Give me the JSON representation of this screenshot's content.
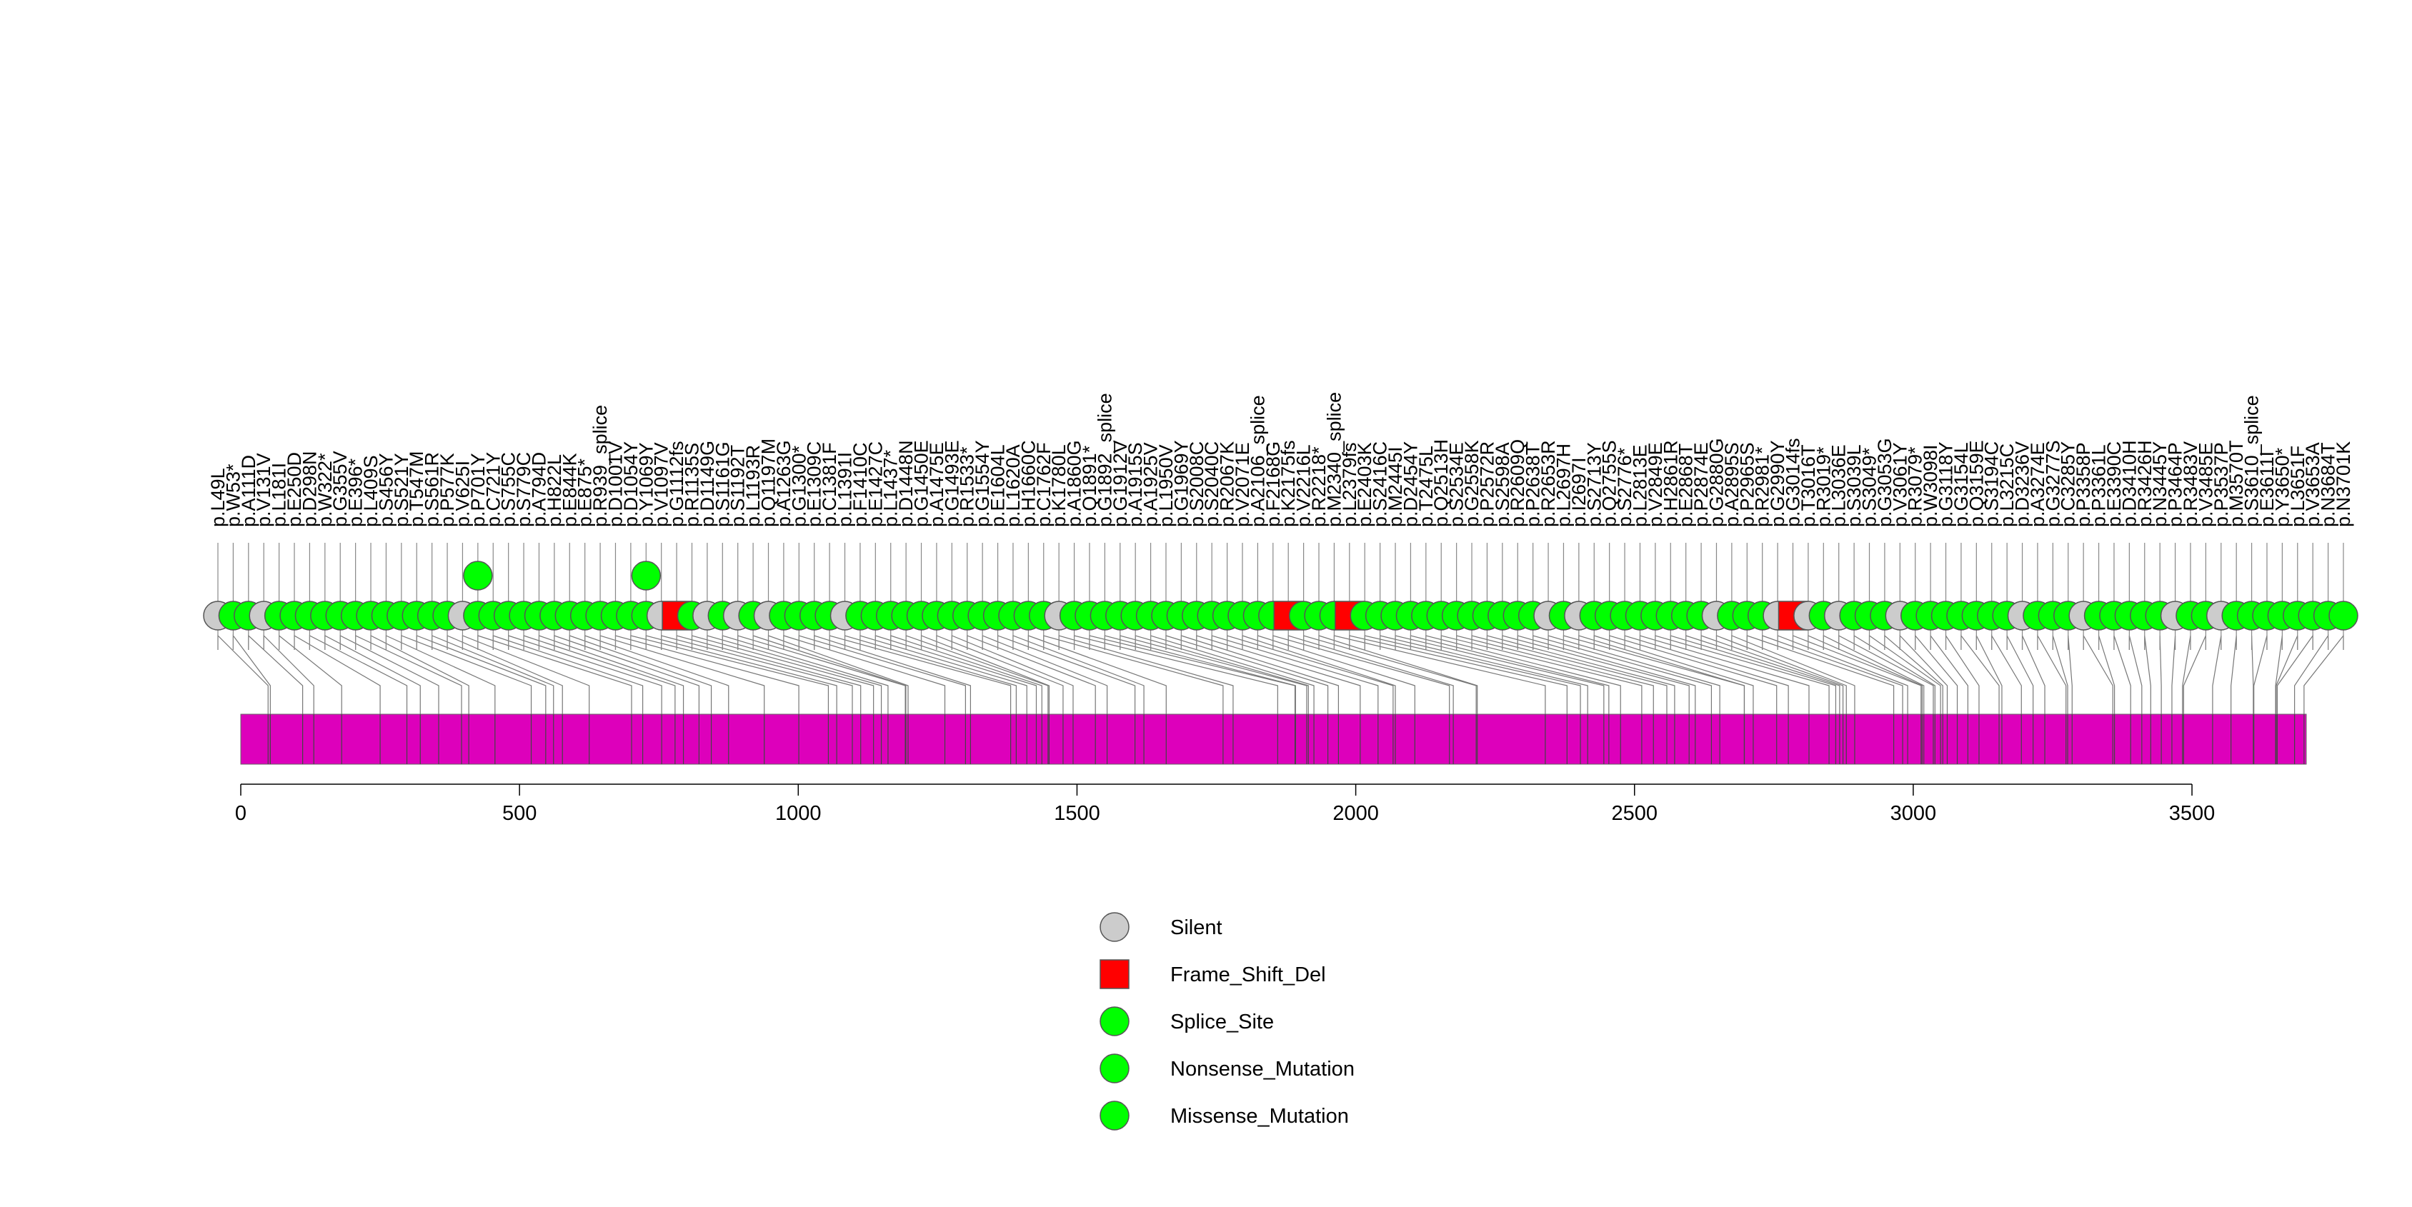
{
  "chart_data": {
    "type": "lollipop",
    "protein_length": 3705,
    "xlim": [
      0,
      3705
    ],
    "x_ticks": [
      0,
      500,
      1000,
      1500,
      2000,
      2500,
      3000,
      3500
    ],
    "x_tick_labels": [
      "0",
      "500",
      "1000",
      "1500",
      "2000",
      "2500",
      "3000",
      "3500"
    ],
    "colors": {
      "Silent": "#cccccc",
      "Frame_Shift_Del": "#ff0000",
      "Splice_Site": "#00ff00",
      "Nonsense_Mutation": "#00ff00",
      "Missense_Mutation": "#00ff00",
      "domain": "#dd00bb"
    },
    "legend": [
      {
        "name": "Silent",
        "shape": "circle",
        "color": "#cccccc"
      },
      {
        "name": "Frame_Shift_Del",
        "shape": "square",
        "color": "#ff0000"
      },
      {
        "name": "Splice_Site",
        "shape": "circle",
        "color": "#00ff00"
      },
      {
        "name": "Nonsense_Mutation",
        "shape": "circle",
        "color": "#00ff00"
      },
      {
        "name": "Missense_Mutation",
        "shape": "circle",
        "color": "#00ff00"
      }
    ],
    "mutations": [
      {
        "label": "p.L49L",
        "pos": 49,
        "type": "Silent",
        "count": 1
      },
      {
        "label": "p.W53*",
        "pos": 53,
        "type": "Nonsense_Mutation",
        "count": 1
      },
      {
        "label": "p.A111D",
        "pos": 111,
        "type": "Missense_Mutation",
        "count": 1
      },
      {
        "label": "p.V131V",
        "pos": 131,
        "type": "Silent",
        "count": 1
      },
      {
        "label": "p.L181I",
        "pos": 181,
        "type": "Missense_Mutation",
        "count": 1
      },
      {
        "label": "p.E250D",
        "pos": 250,
        "type": "Missense_Mutation",
        "count": 1
      },
      {
        "label": "p.D298N",
        "pos": 298,
        "type": "Missense_Mutation",
        "count": 1
      },
      {
        "label": "p.W322*",
        "pos": 322,
        "type": "Nonsense_Mutation",
        "count": 1
      },
      {
        "label": "p.G355V",
        "pos": 355,
        "type": "Missense_Mutation",
        "count": 1
      },
      {
        "label": "p.E396*",
        "pos": 396,
        "type": "Nonsense_Mutation",
        "count": 1
      },
      {
        "label": "p.L409S",
        "pos": 409,
        "type": "Missense_Mutation",
        "count": 1
      },
      {
        "label": "p.S456Y",
        "pos": 456,
        "type": "Missense_Mutation",
        "count": 1
      },
      {
        "label": "p.S521Y",
        "pos": 521,
        "type": "Missense_Mutation",
        "count": 1
      },
      {
        "label": "p.T547M",
        "pos": 547,
        "type": "Missense_Mutation",
        "count": 1
      },
      {
        "label": "p.S561R",
        "pos": 561,
        "type": "Missense_Mutation",
        "count": 1
      },
      {
        "label": "p.P577K",
        "pos": 577,
        "type": "Missense_Mutation",
        "count": 1
      },
      {
        "label": "p.V625I",
        "pos": 625,
        "type": "Silent",
        "count": 1
      },
      {
        "label": "p.P701Y",
        "pos": 701,
        "type": "Missense_Mutation",
        "count": 2
      },
      {
        "label": "p.C721Y",
        "pos": 721,
        "type": "Missense_Mutation",
        "count": 1
      },
      {
        "label": "p.S755C",
        "pos": 755,
        "type": "Missense_Mutation",
        "count": 1
      },
      {
        "label": "p.S779C",
        "pos": 779,
        "type": "Missense_Mutation",
        "count": 1
      },
      {
        "label": "p.A794D",
        "pos": 794,
        "type": "Missense_Mutation",
        "count": 1
      },
      {
        "label": "p.H822L",
        "pos": 822,
        "type": "Missense_Mutation",
        "count": 1
      },
      {
        "label": "p.E844K",
        "pos": 844,
        "type": "Missense_Mutation",
        "count": 1
      },
      {
        "label": "p.E875*",
        "pos": 875,
        "type": "Nonsense_Mutation",
        "count": 1
      },
      {
        "label": "p.R939_splice",
        "pos": 939,
        "type": "Splice_Site",
        "count": 1
      },
      {
        "label": "p.D1001V",
        "pos": 1001,
        "type": "Missense_Mutation",
        "count": 1
      },
      {
        "label": "p.D1054Y",
        "pos": 1054,
        "type": "Missense_Mutation",
        "count": 1
      },
      {
        "label": "p.Y1069Y",
        "pos": 1069,
        "type": "Missense_Mutation",
        "count": 2
      },
      {
        "label": "p.V1097V",
        "pos": 1097,
        "type": "Silent",
        "count": 1
      },
      {
        "label": "p.G1112fs",
        "pos": 1112,
        "type": "Frame_Shift_Del",
        "count": 1
      },
      {
        "label": "p.R1135S",
        "pos": 1135,
        "type": "Missense_Mutation",
        "count": 1
      },
      {
        "label": "p.D1149G",
        "pos": 1149,
        "type": "Silent",
        "count": 1
      },
      {
        "label": "p.S1161G",
        "pos": 1161,
        "type": "Missense_Mutation",
        "count": 1
      },
      {
        "label": "p.S1192T",
        "pos": 1192,
        "type": "Silent",
        "count": 1
      },
      {
        "label": "p.L1193R",
        "pos": 1193,
        "type": "Missense_Mutation",
        "count": 1
      },
      {
        "label": "p.Q1197M",
        "pos": 1197,
        "type": "Silent",
        "count": 1
      },
      {
        "label": "p.A1263G",
        "pos": 1263,
        "type": "Missense_Mutation",
        "count": 1
      },
      {
        "label": "p.G1300*",
        "pos": 1300,
        "type": "Nonsense_Mutation",
        "count": 1
      },
      {
        "label": "p.E1309C",
        "pos": 1309,
        "type": "Missense_Mutation",
        "count": 1
      },
      {
        "label": "p.C1381F",
        "pos": 1381,
        "type": "Missense_Mutation",
        "count": 1
      },
      {
        "label": "p.L1391I",
        "pos": 1391,
        "type": "Silent",
        "count": 1
      },
      {
        "label": "p.F1410C",
        "pos": 1410,
        "type": "Missense_Mutation",
        "count": 1
      },
      {
        "label": "p.E1427C",
        "pos": 1427,
        "type": "Missense_Mutation",
        "count": 1
      },
      {
        "label": "p.L1437*",
        "pos": 1437,
        "type": "Nonsense_Mutation",
        "count": 1
      },
      {
        "label": "p.D1448N",
        "pos": 1448,
        "type": "Missense_Mutation",
        "count": 1
      },
      {
        "label": "p.G1450E",
        "pos": 1450,
        "type": "Missense_Mutation",
        "count": 1
      },
      {
        "label": "p.A1475E",
        "pos": 1475,
        "type": "Missense_Mutation",
        "count": 1
      },
      {
        "label": "p.G1493E",
        "pos": 1493,
        "type": "Missense_Mutation",
        "count": 1
      },
      {
        "label": "p.R1533*",
        "pos": 1533,
        "type": "Nonsense_Mutation",
        "count": 1
      },
      {
        "label": "p.G1554Y",
        "pos": 1554,
        "type": "Missense_Mutation",
        "count": 1
      },
      {
        "label": "p.E1604L",
        "pos": 1604,
        "type": "Missense_Mutation",
        "count": 1
      },
      {
        "label": "p.L1620A",
        "pos": 1620,
        "type": "Missense_Mutation",
        "count": 1
      },
      {
        "label": "p.H1660C",
        "pos": 1660,
        "type": "Missense_Mutation",
        "count": 1
      },
      {
        "label": "p.C1762F",
        "pos": 1762,
        "type": "Missense_Mutation",
        "count": 1
      },
      {
        "label": "p.K1780L",
        "pos": 1780,
        "type": "Silent",
        "count": 1
      },
      {
        "label": "p.A1860G",
        "pos": 1860,
        "type": "Missense_Mutation",
        "count": 1
      },
      {
        "label": "p.Q1891*",
        "pos": 1891,
        "type": "Nonsense_Mutation",
        "count": 1
      },
      {
        "label": "p.G1892_splice",
        "pos": 1892,
        "type": "Splice_Site",
        "count": 1
      },
      {
        "label": "p.G1912V",
        "pos": 1912,
        "type": "Missense_Mutation",
        "count": 1
      },
      {
        "label": "p.A1915S",
        "pos": 1915,
        "type": "Missense_Mutation",
        "count": 1
      },
      {
        "label": "p.A1925V",
        "pos": 1925,
        "type": "Missense_Mutation",
        "count": 1
      },
      {
        "label": "p.L1950V",
        "pos": 1950,
        "type": "Missense_Mutation",
        "count": 1
      },
      {
        "label": "p.G1969Y",
        "pos": 1969,
        "type": "Missense_Mutation",
        "count": 1
      },
      {
        "label": "p.S2008C",
        "pos": 2008,
        "type": "Missense_Mutation",
        "count": 1
      },
      {
        "label": "p.S2040C",
        "pos": 2040,
        "type": "Missense_Mutation",
        "count": 1
      },
      {
        "label": "p.R2067K",
        "pos": 2067,
        "type": "Missense_Mutation",
        "count": 1
      },
      {
        "label": "p.V2071E",
        "pos": 2071,
        "type": "Missense_Mutation",
        "count": 1
      },
      {
        "label": "p.A2106_splice",
        "pos": 2106,
        "type": "Splice_Site",
        "count": 1
      },
      {
        "label": "p.F2168G",
        "pos": 2168,
        "type": "Missense_Mutation",
        "count": 1
      },
      {
        "label": "p.K2175fs",
        "pos": 2175,
        "type": "Frame_Shift_Del",
        "count": 1
      },
      {
        "label": "p.V2216L",
        "pos": 2216,
        "type": "Missense_Mutation",
        "count": 1
      },
      {
        "label": "p.R2218*",
        "pos": 2218,
        "type": "Nonsense_Mutation",
        "count": 1
      },
      {
        "label": "p.M2340_splice",
        "pos": 2340,
        "type": "Splice_Site",
        "count": 1
      },
      {
        "label": "p.L2379fs",
        "pos": 2379,
        "type": "Frame_Shift_Del",
        "count": 1
      },
      {
        "label": "p.E2403K",
        "pos": 2403,
        "type": "Missense_Mutation",
        "count": 1
      },
      {
        "label": "p.S2416C",
        "pos": 2416,
        "type": "Missense_Mutation",
        "count": 1
      },
      {
        "label": "p.M2445I",
        "pos": 2445,
        "type": "Missense_Mutation",
        "count": 1
      },
      {
        "label": "p.D2454Y",
        "pos": 2454,
        "type": "Missense_Mutation",
        "count": 1
      },
      {
        "label": "p.T2475L",
        "pos": 2475,
        "type": "Missense_Mutation",
        "count": 1
      },
      {
        "label": "p.Q2513H",
        "pos": 2513,
        "type": "Missense_Mutation",
        "count": 1
      },
      {
        "label": "p.S2534E",
        "pos": 2534,
        "type": "Missense_Mutation",
        "count": 1
      },
      {
        "label": "p.G2558K",
        "pos": 2558,
        "type": "Missense_Mutation",
        "count": 1
      },
      {
        "label": "p.S2598A",
        "pos": 2598,
        "type": "Missense_Mutation",
        "count": 1
      },
      {
        "label": "p.P2572R",
        "pos": 2572,
        "type": "Missense_Mutation",
        "count": 1
      },
      {
        "label": "p.R2609Q",
        "pos": 2609,
        "type": "Missense_Mutation",
        "count": 1
      },
      {
        "label": "p.P2638T",
        "pos": 2638,
        "type": "Missense_Mutation",
        "count": 1
      },
      {
        "label": "p.R2653R",
        "pos": 2653,
        "type": "Silent",
        "count": 1
      },
      {
        "label": "p.L2697H",
        "pos": 2697,
        "type": "Missense_Mutation",
        "count": 1
      },
      {
        "label": "p.I2697I",
        "pos": 2697,
        "type": "Silent",
        "count": 1
      },
      {
        "label": "p.S2713Y",
        "pos": 2713,
        "type": "Missense_Mutation",
        "count": 1
      },
      {
        "label": "p.Q2755S",
        "pos": 2755,
        "type": "Missense_Mutation",
        "count": 1
      },
      {
        "label": "p.S2776*",
        "pos": 2776,
        "type": "Nonsense_Mutation",
        "count": 1
      },
      {
        "label": "p.L2813E",
        "pos": 2813,
        "type": "Missense_Mutation",
        "count": 1
      },
      {
        "label": "p.V2849E",
        "pos": 2849,
        "type": "Missense_Mutation",
        "count": 1
      },
      {
        "label": "p.H2861R",
        "pos": 2861,
        "type": "Missense_Mutation",
        "count": 1
      },
      {
        "label": "p.E2868T",
        "pos": 2868,
        "type": "Missense_Mutation",
        "count": 1
      },
      {
        "label": "p.P2874E",
        "pos": 2874,
        "type": "Missense_Mutation",
        "count": 1
      },
      {
        "label": "p.G2880G",
        "pos": 2880,
        "type": "Silent",
        "count": 1
      },
      {
        "label": "p.A2895S",
        "pos": 2895,
        "type": "Missense_Mutation",
        "count": 1
      },
      {
        "label": "p.P2965S",
        "pos": 2965,
        "type": "Missense_Mutation",
        "count": 1
      },
      {
        "label": "p.R2981*",
        "pos": 2981,
        "type": "Nonsense_Mutation",
        "count": 1
      },
      {
        "label": "p.G2990Y",
        "pos": 2990,
        "type": "Silent",
        "count": 1
      },
      {
        "label": "p.G3014fs",
        "pos": 3014,
        "type": "Frame_Shift_Del",
        "count": 1
      },
      {
        "label": "p.R3019*",
        "pos": 3019,
        "type": "Nonsense_Mutation",
        "count": 1
      },
      {
        "label": "p.T3016T",
        "pos": 3016,
        "type": "Silent",
        "count": 1
      },
      {
        "label": "p.L3036E",
        "pos": 3036,
        "type": "Silent",
        "count": 1
      },
      {
        "label": "p.S3039L",
        "pos": 3039,
        "type": "Missense_Mutation",
        "count": 1
      },
      {
        "label": "p.S3049*",
        "pos": 3049,
        "type": "Nonsense_Mutation",
        "count": 1
      },
      {
        "label": "p.G3053G",
        "pos": 3053,
        "type": "Missense_Mutation",
        "count": 1
      },
      {
        "label": "p.V3061Y",
        "pos": 3061,
        "type": "Silent",
        "count": 1
      },
      {
        "label": "p.R3079*",
        "pos": 3079,
        "type": "Nonsense_Mutation",
        "count": 1
      },
      {
        "label": "p.W3098I",
        "pos": 3098,
        "type": "Missense_Mutation",
        "count": 1
      },
      {
        "label": "p.G3118Y",
        "pos": 3118,
        "type": "Missense_Mutation",
        "count": 1
      },
      {
        "label": "p.G3154L",
        "pos": 3154,
        "type": "Missense_Mutation",
        "count": 1
      },
      {
        "label": "p.Q3159E",
        "pos": 3159,
        "type": "Missense_Mutation",
        "count": 1
      },
      {
        "label": "p.S3194C",
        "pos": 3194,
        "type": "Missense_Mutation",
        "count": 1
      },
      {
        "label": "p.L3215C",
        "pos": 3215,
        "type": "Missense_Mutation",
        "count": 1
      },
      {
        "label": "p.D3236V",
        "pos": 3236,
        "type": "Silent",
        "count": 1
      },
      {
        "label": "p.A3274E",
        "pos": 3274,
        "type": "Missense_Mutation",
        "count": 1
      },
      {
        "label": "p.G3277S",
        "pos": 3277,
        "type": "Missense_Mutation",
        "count": 1
      },
      {
        "label": "p.C3285Y",
        "pos": 3285,
        "type": "Missense_Mutation",
        "count": 1
      },
      {
        "label": "p.P3358P",
        "pos": 3358,
        "type": "Silent",
        "count": 1
      },
      {
        "label": "p.P3361L",
        "pos": 3361,
        "type": "Missense_Mutation",
        "count": 1
      },
      {
        "label": "p.E3390C",
        "pos": 3390,
        "type": "Missense_Mutation",
        "count": 1
      },
      {
        "label": "p.D3410H",
        "pos": 3410,
        "type": "Missense_Mutation",
        "count": 1
      },
      {
        "label": "p.R3426H",
        "pos": 3426,
        "type": "Missense_Mutation",
        "count": 1
      },
      {
        "label": "p.N3445Y",
        "pos": 3445,
        "type": "Missense_Mutation",
        "count": 1
      },
      {
        "label": "p.P3464P",
        "pos": 3464,
        "type": "Silent",
        "count": 1
      },
      {
        "label": "p.V3485E",
        "pos": 3485,
        "type": "Missense_Mutation",
        "count": 1
      },
      {
        "label": "p.R3483V",
        "pos": 3483,
        "type": "Missense_Mutation",
        "count": 1
      },
      {
        "label": "p.P3537P",
        "pos": 3537,
        "type": "Silent",
        "count": 1
      },
      {
        "label": "p.M3570T",
        "pos": 3570,
        "type": "Missense_Mutation",
        "count": 1
      },
      {
        "label": "p.S3610_splice",
        "pos": 3610,
        "type": "Splice_Site",
        "count": 1
      },
      {
        "label": "p.E3611I",
        "pos": 3611,
        "type": "Missense_Mutation",
        "count": 1
      },
      {
        "label": "p.Y3650*",
        "pos": 3650,
        "type": "Nonsense_Mutation",
        "count": 1
      },
      {
        "label": "p.L3651F",
        "pos": 3651,
        "type": "Missense_Mutation",
        "count": 1
      },
      {
        "label": "p.V3653A",
        "pos": 3653,
        "type": "Missense_Mutation",
        "count": 1
      },
      {
        "label": "p.N3684T",
        "pos": 3684,
        "type": "Missense_Mutation",
        "count": 1
      },
      {
        "label": "p.N3701K",
        "pos": 3701,
        "type": "Missense_Mutation",
        "count": 1
      }
    ]
  }
}
